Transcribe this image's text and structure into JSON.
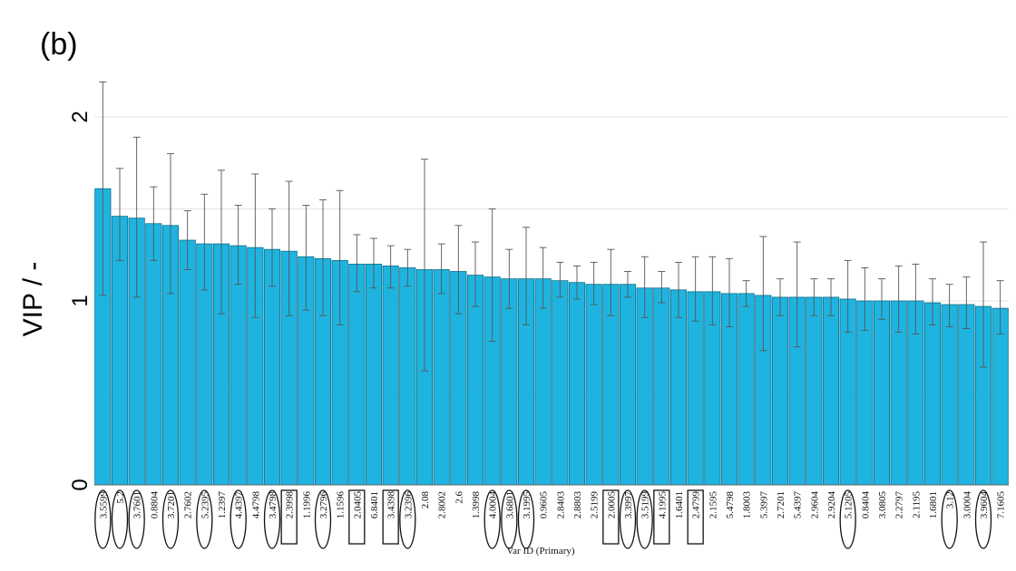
{
  "panel_label": "(b)",
  "chart_data": {
    "type": "bar",
    "ylabel": "VIP / -",
    "xlabel": "Var ID (Primary)",
    "ylim": [
      0,
      2.2
    ],
    "yticks": [
      0,
      1,
      2
    ],
    "grid": "horizontal",
    "bar_color": "#1fb4e0",
    "categories": [
      "3.5599",
      "5.2",
      "3.7601",
      "0.8804",
      "3.7201",
      "2.7602",
      "5.2395",
      "1.2397",
      "4.4397",
      "4.4798",
      "3.4798",
      "2.3998",
      "1.1996",
      "3.2796",
      "1.1596",
      "2.0405",
      "6.8401",
      "3.4398",
      "3.2396",
      "2.08",
      "2.8002",
      "2.6",
      "1.3998",
      "4.0004",
      "3.6801",
      "3.1995",
      "0.9605",
      "2.8403",
      "2.8803",
      "2.5199",
      "2.0005",
      "3.3997",
      "3.5199",
      "4.1995",
      "1.6401",
      "2.4799",
      "2.1595",
      "5.4798",
      "1.8003",
      "5.3997",
      "2.7201",
      "5.4397",
      "2.9604",
      "2.9204",
      "5.1205",
      "0.8404",
      "3.0805",
      "2.2797",
      "2.1195",
      "1.6801",
      "3.12",
      "3.0004",
      "3.9604",
      "7.1605"
    ],
    "values": [
      1.61,
      1.46,
      1.45,
      1.42,
      1.41,
      1.33,
      1.31,
      1.31,
      1.3,
      1.29,
      1.28,
      1.27,
      1.24,
      1.23,
      1.22,
      1.2,
      1.2,
      1.19,
      1.18,
      1.17,
      1.17,
      1.16,
      1.14,
      1.13,
      1.12,
      1.12,
      1.12,
      1.11,
      1.1,
      1.09,
      1.09,
      1.09,
      1.07,
      1.07,
      1.06,
      1.05,
      1.05,
      1.04,
      1.04,
      1.03,
      1.02,
      1.02,
      1.02,
      1.02,
      1.01,
      1.0,
      1.0,
      1.0,
      1.0,
      0.99,
      0.98,
      0.98,
      0.97,
      0.96
    ],
    "err_upper": [
      2.19,
      1.72,
      1.89,
      1.62,
      1.8,
      1.49,
      1.58,
      1.71,
      1.52,
      1.69,
      1.5,
      1.65,
      1.52,
      1.55,
      1.6,
      1.36,
      1.34,
      1.3,
      1.28,
      1.77,
      1.31,
      1.41,
      1.32,
      1.5,
      1.28,
      1.4,
      1.29,
      1.21,
      1.19,
      1.21,
      1.28,
      1.16,
      1.24,
      1.16,
      1.21,
      1.24,
      1.24,
      1.23,
      1.11,
      1.35,
      1.12,
      1.32,
      1.12,
      1.12,
      1.22,
      1.18,
      1.12,
      1.19,
      1.2,
      1.12,
      1.09,
      1.13,
      1.32,
      1.11
    ],
    "err_lower": [
      1.03,
      1.22,
      1.02,
      1.22,
      1.04,
      1.17,
      1.06,
      0.93,
      1.09,
      0.91,
      1.08,
      0.92,
      0.95,
      0.92,
      0.87,
      1.05,
      1.07,
      1.07,
      1.08,
      0.62,
      1.04,
      0.93,
      0.97,
      0.78,
      0.96,
      0.87,
      0.96,
      1.02,
      1.01,
      0.98,
      0.92,
      1.02,
      0.91,
      0.99,
      0.91,
      0.89,
      0.87,
      0.86,
      0.97,
      0.73,
      0.92,
      0.75,
      0.92,
      0.92,
      0.83,
      0.84,
      0.9,
      0.83,
      0.82,
      0.87,
      0.86,
      0.85,
      0.64,
      0.82
    ],
    "circled": [
      "3.5599",
      "5.2",
      "3.7601",
      "3.7201",
      "5.2395",
      "4.4397",
      "3.4798",
      "3.2796",
      "3.2396",
      "4.0004",
      "3.6801",
      "3.1995",
      "3.3997",
      "3.5199",
      "5.1205",
      "3.12",
      "3.9604"
    ],
    "boxed": [
      "2.3998",
      "2.0405",
      "3.4398",
      "2.0005",
      "4.1995",
      "2.4799"
    ]
  }
}
